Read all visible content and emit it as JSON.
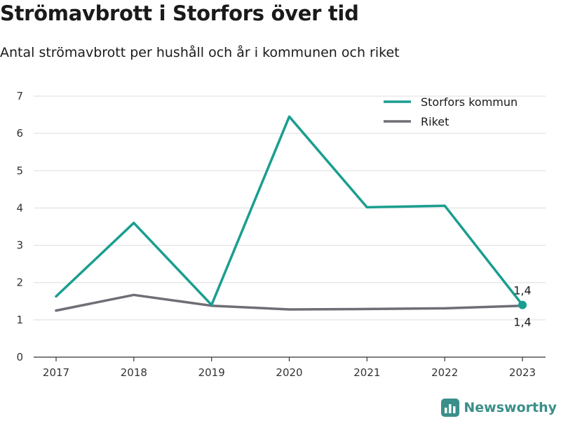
{
  "header": {
    "title": "Strömavbrott i Storfors över tid",
    "subtitle": "Antal strömavbrott per hushåll och år i kommunen och riket"
  },
  "brand": {
    "name": "Newsworthy",
    "icon": "newsworthy-logo-icon"
  },
  "colors": {
    "storfors": "#1a9e8f",
    "riket": "#6e6e76",
    "grid": "#dddddd",
    "axis": "#333333"
  },
  "chart_data": {
    "type": "line",
    "title": "Strömavbrott i Storfors över tid",
    "subtitle": "Antal strömavbrott per hushåll och år i kommunen och riket",
    "xlabel": "",
    "ylabel": "",
    "categories": [
      "2017",
      "2018",
      "2019",
      "2020",
      "2021",
      "2022",
      "2023"
    ],
    "yticks": [
      "0",
      "1",
      "2",
      "3",
      "4",
      "5",
      "6",
      "7"
    ],
    "ylim": [
      0,
      7
    ],
    "grid": true,
    "legend_position": "top-right",
    "series": [
      {
        "name": "Storfors kommun",
        "values": [
          1.63,
          3.6,
          1.4,
          6.45,
          4.02,
          4.06,
          1.4
        ]
      },
      {
        "name": "Riket",
        "values": [
          1.25,
          1.67,
          1.38,
          1.28,
          1.29,
          1.31,
          1.38
        ]
      }
    ],
    "annotations": [
      {
        "series": "Storfors kommun",
        "category": "2023",
        "text": "1,4"
      },
      {
        "series": "Riket",
        "category": "2023",
        "text": "1,4"
      }
    ]
  }
}
